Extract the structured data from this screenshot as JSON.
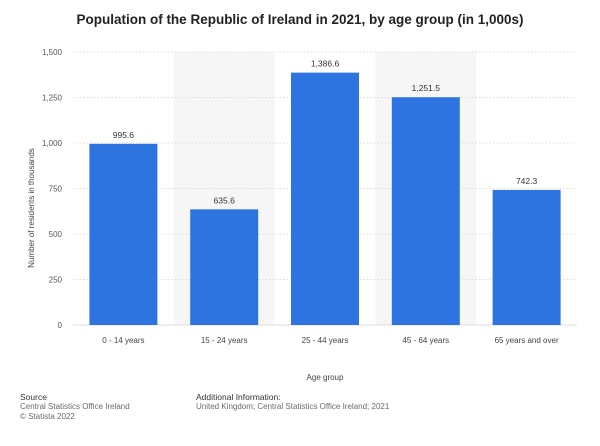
{
  "chart_data": {
    "type": "bar",
    "title": "Population of the Republic of Ireland in 2021, by age group (in 1,000s)",
    "categories": [
      "0 - 14 years",
      "15 - 24 years",
      "25 - 44 years",
      "45 - 64 years",
      "65 years and over"
    ],
    "values": [
      995.6,
      635.6,
      1386.6,
      1251.5,
      742.3
    ],
    "value_labels": [
      "995.6",
      "635.6",
      "1,386.6",
      "1,251.5",
      "742.3"
    ],
    "xlabel": "Age group",
    "ylabel": "Number of residents in thousands",
    "ylim": [
      0,
      1500
    ],
    "yticks": [
      0,
      250,
      500,
      750,
      1000,
      1250,
      1500
    ],
    "ytick_labels": [
      "0",
      "250",
      "500",
      "750",
      "1,000",
      "1,250",
      "1,500"
    ],
    "bar_color": "#2e74e0",
    "grid": true
  },
  "footer": {
    "source_heading": "Source",
    "source_lines": [
      "Central Statistics Office Ireland",
      "© Statista 2022"
    ],
    "info_heading": "Additional Information:",
    "info_text": "United Kingdom; Central Statistics Office Ireland; 2021"
  }
}
